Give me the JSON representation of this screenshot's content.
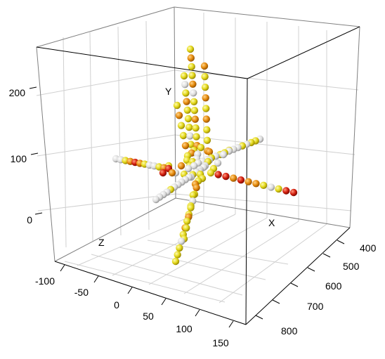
{
  "chart_data": {
    "type": "scatter3d",
    "title": "",
    "axes": {
      "x": {
        "label": "X",
        "ticks": [
          "400",
          "500",
          "600",
          "700",
          "800"
        ]
      },
      "y": {
        "label": "Y",
        "ticks": [
          "0",
          "100",
          "200"
        ]
      },
      "z": {
        "label": "Z",
        "ticks": [
          "-100",
          "-50",
          "0",
          "50",
          "100",
          "150"
        ]
      }
    },
    "grid": true,
    "colors": {
      "white": "#e6e6e6",
      "yellow": "#e8e020",
      "orange": "#e89010",
      "red": "#d42010"
    }
  }
}
